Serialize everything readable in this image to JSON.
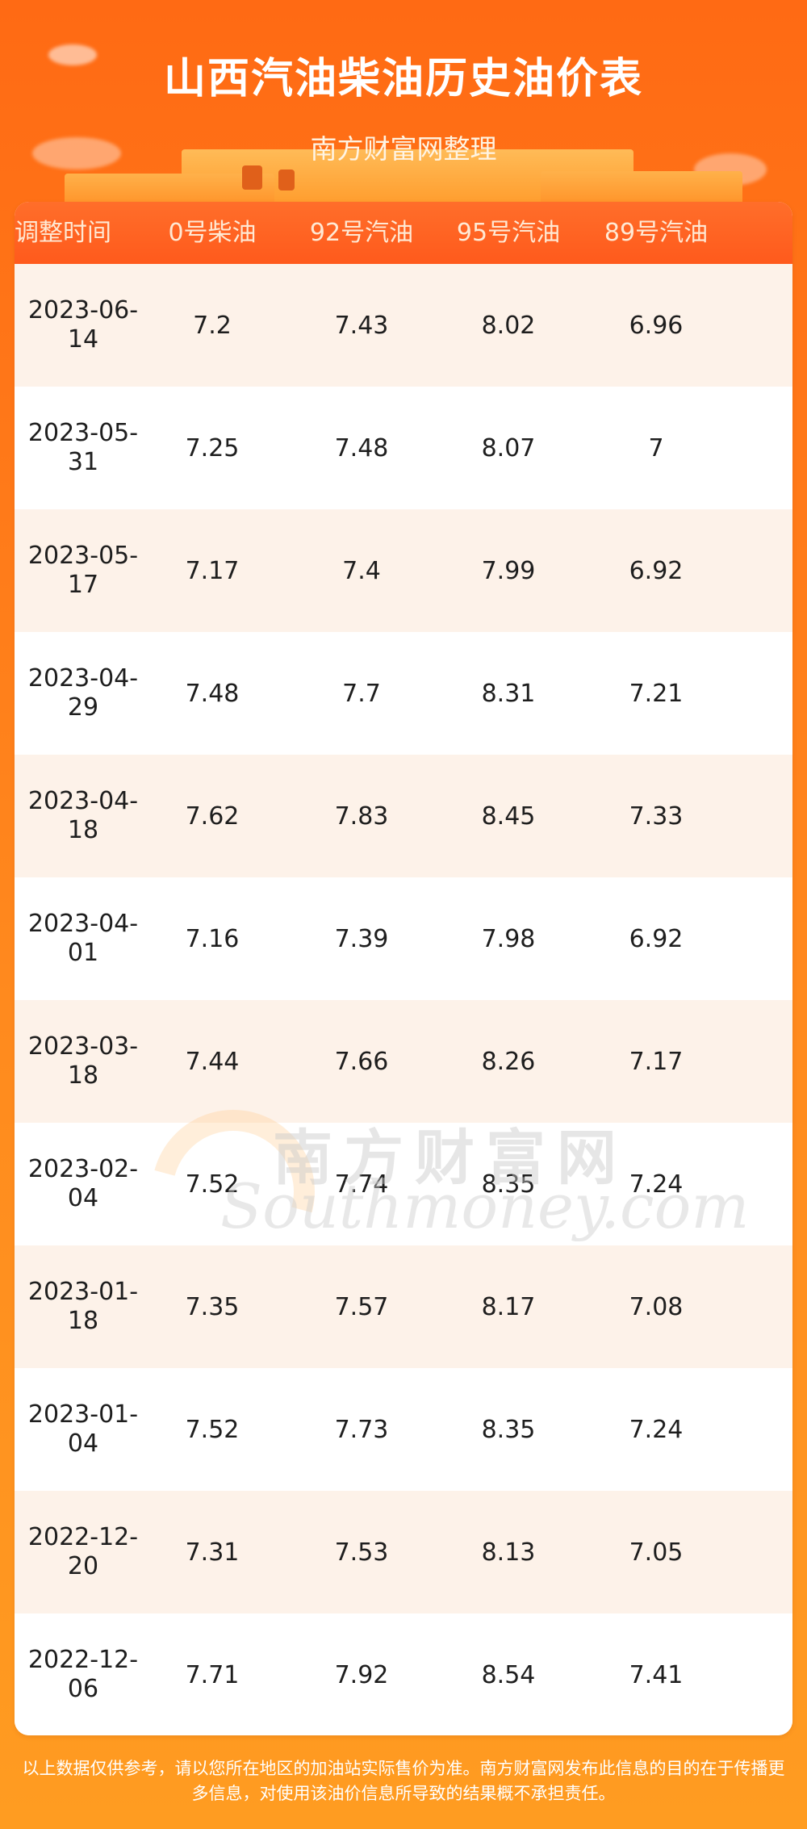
{
  "header": {
    "title": "山西汽油柴油历史油价表",
    "subtitle": "南方财富网整理"
  },
  "table": {
    "columns": [
      "调整时间",
      "0号柴油",
      "92号汽油",
      "95号汽油",
      "89号汽油"
    ],
    "rows": [
      {
        "date_line1": "2023-06-",
        "date_line2": "14",
        "diesel0": "7.2",
        "gas92": "7.43",
        "gas95": "8.02",
        "gas89": "6.96"
      },
      {
        "date_line1": "2023-05-",
        "date_line2": "31",
        "diesel0": "7.25",
        "gas92": "7.48",
        "gas95": "8.07",
        "gas89": "7"
      },
      {
        "date_line1": "2023-05-",
        "date_line2": "17",
        "diesel0": "7.17",
        "gas92": "7.4",
        "gas95": "7.99",
        "gas89": "6.92"
      },
      {
        "date_line1": "2023-04-",
        "date_line2": "29",
        "diesel0": "7.48",
        "gas92": "7.7",
        "gas95": "8.31",
        "gas89": "7.21"
      },
      {
        "date_line1": "2023-04-",
        "date_line2": "18",
        "diesel0": "7.62",
        "gas92": "7.83",
        "gas95": "8.45",
        "gas89": "7.33"
      },
      {
        "date_line1": "2023-04-",
        "date_line2": "01",
        "diesel0": "7.16",
        "gas92": "7.39",
        "gas95": "7.98",
        "gas89": "6.92"
      },
      {
        "date_line1": "2023-03-",
        "date_line2": "18",
        "diesel0": "7.44",
        "gas92": "7.66",
        "gas95": "8.26",
        "gas89": "7.17"
      },
      {
        "date_line1": "2023-02-",
        "date_line2": "04",
        "diesel0": "7.52",
        "gas92": "7.74",
        "gas95": "8.35",
        "gas89": "7.24"
      },
      {
        "date_line1": "2023-01-",
        "date_line2": "18",
        "diesel0": "7.35",
        "gas92": "7.57",
        "gas95": "8.17",
        "gas89": "7.08"
      },
      {
        "date_line1": "2023-01-",
        "date_line2": "04",
        "diesel0": "7.52",
        "gas92": "7.73",
        "gas95": "8.35",
        "gas89": "7.24"
      },
      {
        "date_line1": "2022-12-",
        "date_line2": "20",
        "diesel0": "7.31",
        "gas92": "7.53",
        "gas95": "8.13",
        "gas89": "7.05"
      },
      {
        "date_line1": "2022-12-",
        "date_line2": "06",
        "diesel0": "7.71",
        "gas92": "7.92",
        "gas95": "8.54",
        "gas89": "7.41"
      }
    ]
  },
  "watermark": {
    "cn": "南方财富网",
    "en": "Southmoney.com"
  },
  "footer": {
    "line1": "以上数据仅供参考，请以您所在地区的加油站实际售价为准。南方财富网发布此信息的目的在于传播更",
    "line2": "多信息，对使用该油价信息所导致的结果概不承担责任。"
  }
}
